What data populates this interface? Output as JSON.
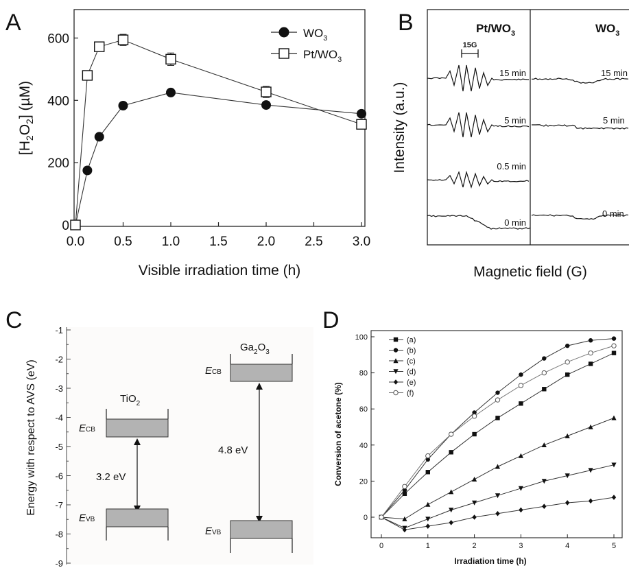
{
  "panels": {
    "A": {
      "letter": "A",
      "ylabel_pre": "[H",
      "ylabel_sub": "2",
      "ylabel_mid": "O",
      "ylabel_sub2": "2",
      "ylabel_post": "] (µM)",
      "xlabel": "Visible irradiation time (h)",
      "legend": [
        {
          "pre": "WO",
          "sub": "3",
          "marker": "filled-circle"
        },
        {
          "pre": "Pt/WO",
          "sub": "3",
          "marker": "open-square"
        }
      ]
    },
    "B": {
      "letter": "B",
      "ylabel": "Intensity (a.u.)",
      "xlabel": "Magnetic field (G)",
      "scale_label": "15G",
      "left_title_pre": "Pt/WO",
      "left_title_sub": "3",
      "right_title_pre": "WO",
      "right_title_sub": "3",
      "left_traces": [
        "15 min",
        "5 min",
        "0.5 min",
        "0 min"
      ],
      "right_traces": [
        "15 min",
        "5 min",
        "0 min"
      ]
    },
    "C": {
      "letter": "C",
      "ylabel": "Energy with respect to AVS  (eV)",
      "ticks": [
        "-1",
        "-2",
        "-3",
        "-4",
        "-5",
        "-6",
        "-7",
        "-8",
        "-9"
      ],
      "tio2": {
        "name_pre": "TiO",
        "name_sub": "2",
        "gap": "3.2 eV",
        "cb": "CB",
        "vb": "VB",
        "e": "E"
      },
      "ga2o3": {
        "name_pre": "Ga",
        "name_sub": "2",
        "name_mid": "O",
        "name_sub2": "3",
        "gap": "4.8 eV",
        "cb": "CB",
        "vb": "VB",
        "e": "E"
      }
    },
    "D": {
      "letter": "D",
      "ylabel": "Conversion of acetone (%)",
      "xlabel": "Irradiation time (h)"
    }
  },
  "chart_data": [
    {
      "panel": "A",
      "type": "line",
      "xlabel": "Visible irradiation time (h)",
      "ylabel": "[H2O2] (µM)",
      "xlim": [
        0,
        3.0
      ],
      "ylim": [
        0,
        700
      ],
      "xticks": [
        "0.0",
        "0.5",
        "1.0",
        "1.5",
        "2.0",
        "2.5",
        "3.0"
      ],
      "yticks": [
        "0",
        "200",
        "400",
        "600"
      ],
      "series": [
        {
          "name": "WO3",
          "marker": "filled-circle",
          "x": [
            0,
            0.125,
            0.25,
            0.5,
            1.0,
            2.0,
            3.0
          ],
          "y": [
            0,
            175,
            283,
            383,
            425,
            385,
            357
          ]
        },
        {
          "name": "Pt/WO3",
          "marker": "open-square",
          "x": [
            0,
            0.125,
            0.25,
            0.5,
            1.0,
            2.0,
            3.0
          ],
          "y": [
            0,
            480,
            572,
            594,
            532,
            427,
            323
          ],
          "yerr": [
            0,
            10,
            15,
            18,
            20,
            18,
            12
          ]
        }
      ]
    },
    {
      "panel": "B",
      "type": "line",
      "xlabel": "Magnetic field (G)",
      "ylabel": "Intensity (a.u.)",
      "series": [
        {
          "name": "Pt/WO3 15 min",
          "signal": "DMPO-OH quartet, strong"
        },
        {
          "name": "Pt/WO3 5 min",
          "signal": "DMPO-OH quartet, strong"
        },
        {
          "name": "Pt/WO3 0.5 min",
          "signal": "DMPO-OH quartet, weak"
        },
        {
          "name": "Pt/WO3 0 min",
          "signal": "baseline"
        },
        {
          "name": "WO3 15 min",
          "signal": "baseline"
        },
        {
          "name": "WO3 5 min",
          "signal": "baseline"
        },
        {
          "name": "WO3 0 min",
          "signal": "baseline"
        }
      ]
    },
    {
      "panel": "C",
      "type": "other",
      "ylabel": "Energy with respect to AVS  (eV)",
      "ylim": [
        -9,
        -1
      ],
      "bands": [
        {
          "name": "TiO2",
          "ECB": [
            -3.6,
            -4.2
          ],
          "EVB": [
            -7.4,
            -8.0
          ],
          "gap": "3.2 eV"
        },
        {
          "name": "Ga2O3",
          "ECB": [
            -2.4,
            -2.95
          ],
          "EVB": [
            -7.75,
            -8.3
          ],
          "gap": "4.8 eV"
        }
      ]
    },
    {
      "panel": "D",
      "type": "line",
      "xlabel": "Irradiation time (h)",
      "ylabel": "Conversion of acetone (%)",
      "xlim": [
        0,
        5
      ],
      "ylim": [
        -10,
        100
      ],
      "xticks": [
        "0",
        "1",
        "2",
        "3",
        "4",
        "5"
      ],
      "yticks": [
        "0",
        "20",
        "40",
        "60",
        "80",
        "100"
      ],
      "series": [
        {
          "name": "(a)",
          "marker": "square",
          "x": [
            0,
            0.5,
            1,
            1.5,
            2,
            2.5,
            3,
            3.5,
            4,
            4.5,
            5
          ],
          "y": [
            0,
            13,
            25,
            36,
            46,
            55,
            63,
            71,
            79,
            85,
            91
          ]
        },
        {
          "name": "(b)",
          "marker": "circle",
          "x": [
            0,
            0.5,
            1,
            1.5,
            2,
            2.5,
            3,
            3.5,
            4,
            4.5,
            5
          ],
          "y": [
            0,
            15,
            32,
            46,
            58,
            69,
            79,
            88,
            95,
            98,
            99
          ]
        },
        {
          "name": "(c)",
          "marker": "triangle-up",
          "x": [
            0,
            0.5,
            1,
            1.5,
            2,
            2.5,
            3,
            3.5,
            4,
            4.5,
            5
          ],
          "y": [
            0,
            -1,
            7,
            14,
            21,
            28,
            34,
            40,
            45,
            50,
            55
          ]
        },
        {
          "name": "(d)",
          "marker": "triangle-down",
          "x": [
            0,
            0.5,
            1,
            1.5,
            2,
            2.5,
            3,
            3.5,
            4,
            4.5,
            5
          ],
          "y": [
            0,
            -6,
            -1,
            4,
            8,
            12,
            16,
            20,
            23,
            26,
            29
          ]
        },
        {
          "name": "(e)",
          "marker": "diamond",
          "x": [
            0,
            0.5,
            1,
            1.5,
            2,
            2.5,
            3,
            3.5,
            4,
            4.5,
            5
          ],
          "y": [
            0,
            -7,
            -5,
            -3,
            0,
            2,
            4,
            6,
            8,
            9,
            11
          ]
        },
        {
          "name": "(f)",
          "marker": "open-circle",
          "x": [
            0,
            0.5,
            1,
            1.5,
            2,
            2.5,
            3,
            3.5,
            4,
            4.5,
            5
          ],
          "y": [
            0,
            17,
            34,
            46,
            56,
            65,
            73,
            80,
            86,
            91,
            95
          ]
        }
      ]
    }
  ]
}
